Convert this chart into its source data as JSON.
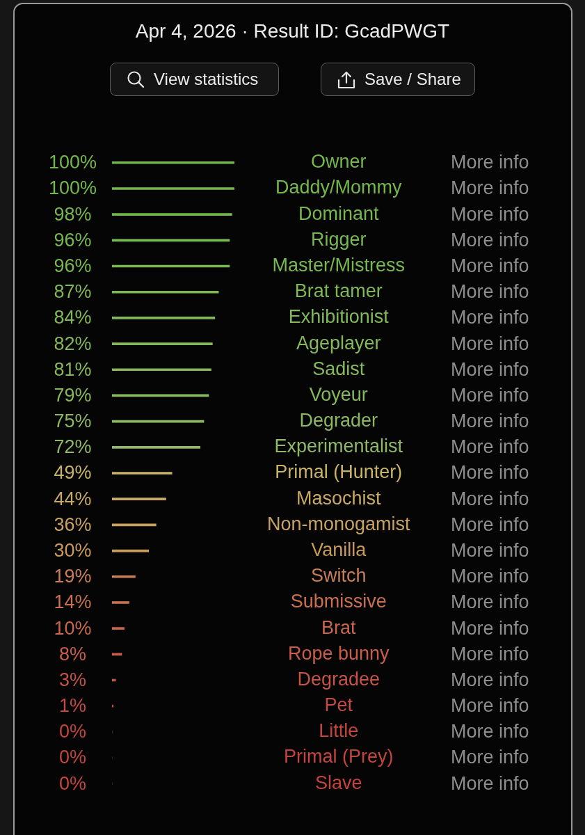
{
  "chart_data": {
    "type": "bar",
    "orientation": "horizontal",
    "title": "Apr 4, 2026 · Result ID: GcadPWGT",
    "categories": [
      "Owner",
      "Daddy/Mommy",
      "Dominant",
      "Rigger",
      "Master/Mistress",
      "Brat tamer",
      "Exhibitionist",
      "Ageplayer",
      "Sadist",
      "Voyeur",
      "Degrader",
      "Experimentalist",
      "Primal (Hunter)",
      "Masochist",
      "Non-monogamist",
      "Vanilla",
      "Switch",
      "Submissive",
      "Brat",
      "Rope bunny",
      "Degradee",
      "Pet",
      "Little",
      "Primal (Prey)",
      "Slave"
    ],
    "values": [
      100,
      100,
      98,
      96,
      96,
      87,
      84,
      82,
      81,
      79,
      75,
      72,
      49,
      44,
      36,
      30,
      19,
      14,
      10,
      8,
      3,
      1,
      0,
      0,
      0
    ],
    "value_labels": [
      "100%",
      "100%",
      "98%",
      "96%",
      "96%",
      "87%",
      "84%",
      "82%",
      "81%",
      "79%",
      "75%",
      "72%",
      "49%",
      "44%",
      "36%",
      "30%",
      "19%",
      "14%",
      "10%",
      "8%",
      "3%",
      "1%",
      "0%",
      "0%",
      "0%"
    ],
    "colors": [
      "#74b84c",
      "#74b84c",
      "#76b84e",
      "#78b850",
      "#78b850",
      "#7fb856",
      "#82b858",
      "#84b85a",
      "#86b85c",
      "#88b85e",
      "#8cb862",
      "#90b866",
      "#c8b468",
      "#c8aa66",
      "#c8a262",
      "#c89a5c",
      "#c87e56",
      "#c87050",
      "#c8664e",
      "#c85e4a",
      "#c45446",
      "#c44a42",
      "#c4443e",
      "#c4443e",
      "#c4443e"
    ],
    "xlim": [
      0,
      100
    ],
    "tick_labels": "y",
    "annotations": [
      "View statistics",
      "Save / Share",
      "More info",
      "More info",
      "More info",
      "More info",
      "More info",
      "More info",
      "More info",
      "More info",
      "More info",
      "More info",
      "More info",
      "More info",
      "More info",
      "More info",
      "More info",
      "More info",
      "More info",
      "More info",
      "More info",
      "More info",
      "More info",
      "More info",
      "More info",
      "More info",
      "More info"
    ]
  }
}
